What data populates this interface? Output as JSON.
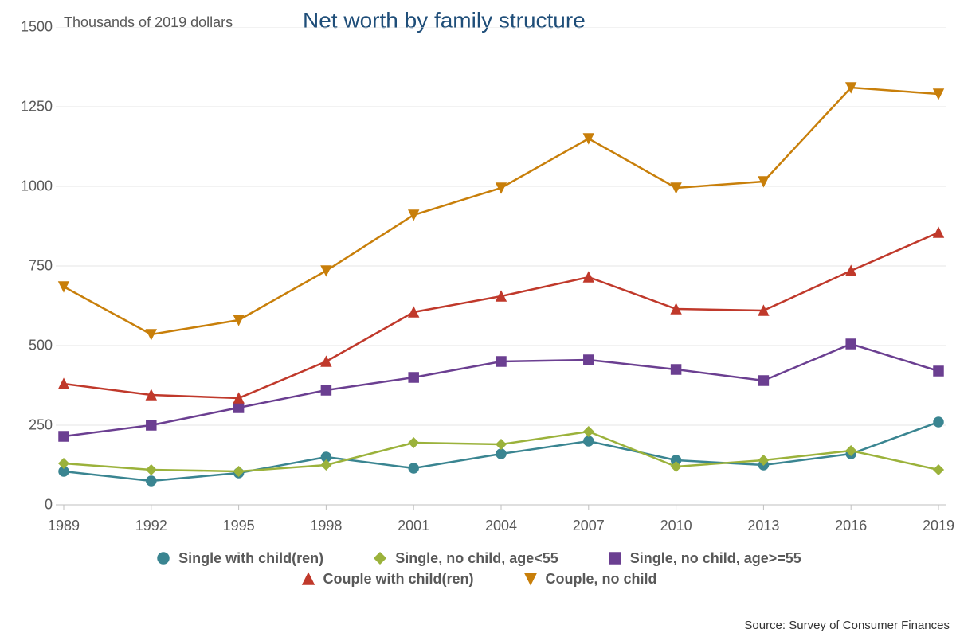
{
  "title": "Net worth by family structure",
  "y_subtitle": "Thousands of 2019 dollars",
  "source": "Source: Survey of Consumer Finances",
  "chart": {
    "type": "line",
    "x_values": [
      1989,
      1992,
      1995,
      1998,
      2001,
      2004,
      2007,
      2010,
      2013,
      2016,
      2019
    ],
    "y_ticks": [
      0,
      250,
      500,
      750,
      1000,
      1250,
      1500
    ],
    "ylim": [
      0,
      1500
    ],
    "xlim": [
      1989,
      2019
    ],
    "background_color": "#ffffff",
    "grid_color": "#e6e6e6",
    "axis_color": "#bfbfbf",
    "text_color": "#595959",
    "title_color": "#1f4e79",
    "title_fontsize": 28,
    "label_fontsize": 18,
    "legend_fontsize": 18,
    "line_width": 2.5,
    "marker_size": 12,
    "series": [
      {
        "name": "Single with child(ren)",
        "color": "#3a8591",
        "marker": "circle",
        "values": [
          105,
          75,
          100,
          150,
          115,
          160,
          200,
          140,
          125,
          160,
          260
        ]
      },
      {
        "name": "Single, no child, age<55",
        "color": "#9bb23b",
        "marker": "diamond",
        "values": [
          130,
          110,
          105,
          125,
          195,
          190,
          230,
          120,
          140,
          170,
          110
        ]
      },
      {
        "name": "Single, no child, age>=55",
        "color": "#6b3f91",
        "marker": "square",
        "values": [
          215,
          250,
          305,
          360,
          400,
          450,
          455,
          425,
          390,
          505,
          420
        ]
      },
      {
        "name": "Couple with child(ren)",
        "color": "#c0392b",
        "marker": "triangle-up",
        "values": [
          380,
          345,
          335,
          450,
          605,
          655,
          715,
          615,
          610,
          735,
          855
        ]
      },
      {
        "name": "Couple, no child",
        "color": "#c87f0a",
        "marker": "triangle-down",
        "values": [
          685,
          535,
          580,
          735,
          910,
          995,
          1150,
          995,
          1015,
          1310,
          1290
        ]
      }
    ],
    "legend_layout": [
      [
        0,
        1,
        2
      ],
      [
        3,
        4
      ]
    ]
  }
}
